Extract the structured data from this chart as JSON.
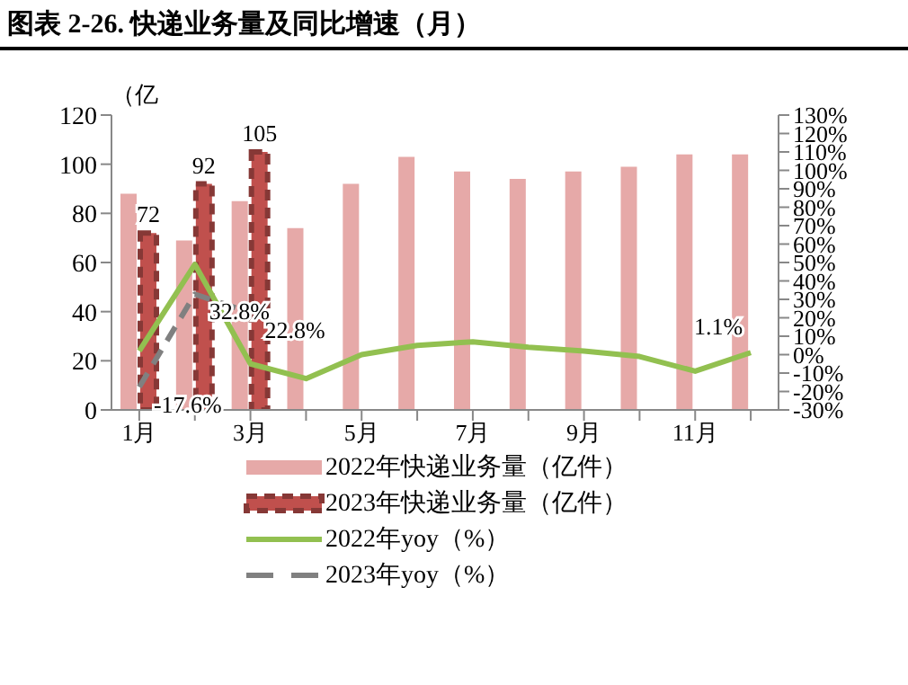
{
  "chart_data": {
    "type": "bar",
    "title": "图表 2-26. 快递业务量及同比增速（月）",
    "ylabel": "（亿",
    "categories": [
      "1月",
      null,
      "3月",
      null,
      "5月",
      null,
      "7月",
      null,
      "9月",
      null,
      "11月",
      null
    ],
    "series": [
      {
        "name": "2022年快递业务量（亿件）",
        "color": "#e6a9a8",
        "values": [
          88,
          69,
          85,
          74,
          92,
          103,
          97,
          94,
          97,
          99,
          104,
          104
        ]
      },
      {
        "name": "2023年快递业务量（亿件）",
        "color": "#c0504d",
        "line_style": "dashed",
        "values": [
          72,
          92,
          105,
          null,
          null,
          null,
          null,
          null,
          null,
          null,
          null,
          null
        ],
        "value_labels": [
          "72",
          "92",
          "105",
          null,
          null,
          null,
          null,
          null,
          null,
          null,
          null,
          null
        ]
      },
      {
        "type": "line",
        "name": "2022年yoy（%）",
        "color": "#92c050",
        "axis": "y2",
        "values": [
          2,
          49,
          -5,
          -13,
          0,
          5,
          7,
          4,
          2,
          -1,
          -9,
          1.1
        ],
        "value_labels": [
          null,
          null,
          null,
          null,
          null,
          null,
          null,
          null,
          null,
          null,
          null,
          "1.1%"
        ]
      },
      {
        "type": "line",
        "name": "2023年yoy（%）",
        "color": "#808080",
        "axis": "y2",
        "line_style": "dashed",
        "values": [
          -17.6,
          32.8,
          22.8,
          null,
          null,
          null,
          null,
          null,
          null,
          null,
          null,
          null
        ],
        "value_labels": [
          "-17.6%",
          "32.8%",
          "22.8%",
          null,
          null,
          null,
          null,
          null,
          null,
          null,
          null,
          null
        ]
      }
    ],
    "ylim": [
      0,
      120
    ],
    "yticks": [
      0,
      20,
      40,
      60,
      80,
      100,
      120
    ],
    "y2lim": [
      -30,
      130
    ],
    "y2ticks": [
      {
        "value": -30,
        "label": "-30%"
      },
      {
        "value": -20,
        "label": "-20%"
      },
      {
        "value": -10,
        "label": "-10%"
      },
      {
        "value": 0,
        "label": "0%"
      },
      {
        "value": 10,
        "label": "10%"
      },
      {
        "value": 20,
        "label": "20%"
      },
      {
        "value": 30,
        "label": "30%"
      },
      {
        "value": 40,
        "label": "40%"
      },
      {
        "value": 50,
        "label": "50%"
      },
      {
        "value": 60,
        "label": "60%"
      },
      {
        "value": 70,
        "label": "70%"
      },
      {
        "value": 80,
        "label": "80%"
      },
      {
        "value": 90,
        "label": "90%"
      },
      {
        "value": 100,
        "label": "100%"
      },
      {
        "value": 110,
        "label": "110%"
      },
      {
        "value": 120,
        "label": "120%"
      },
      {
        "value": 130,
        "label": "130%"
      }
    ],
    "grid": false,
    "legend": "bottom",
    "marker": "none"
  }
}
